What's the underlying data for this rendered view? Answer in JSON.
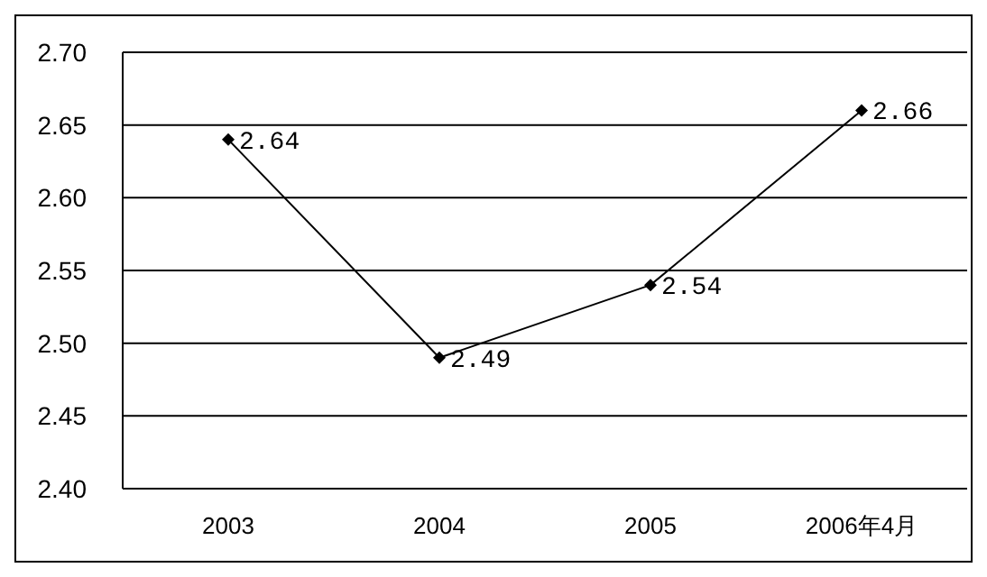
{
  "chart_data": {
    "type": "line",
    "categories": [
      "2003",
      "2004",
      "2005",
      "2006年4月"
    ],
    "series": [
      {
        "color": "#000000",
        "values": [
          2.64,
          2.49,
          2.54,
          2.66
        ]
      }
    ],
    "ylim": [
      2.4,
      2.7
    ],
    "yticks": [
      {
        "value": 2.4,
        "label": "2.40"
      },
      {
        "value": 2.45,
        "label": "2.45"
      },
      {
        "value": 2.5,
        "label": "2.50"
      },
      {
        "value": 2.55,
        "label": "2.55"
      },
      {
        "value": 2.6,
        "label": "2.60"
      },
      {
        "value": 2.65,
        "label": "2.65"
      },
      {
        "value": 2.7,
        "label": "2.70"
      }
    ],
    "grid": "y",
    "legend": false,
    "marker": "diamond",
    "line_style": "solid",
    "data_labels": true
  }
}
